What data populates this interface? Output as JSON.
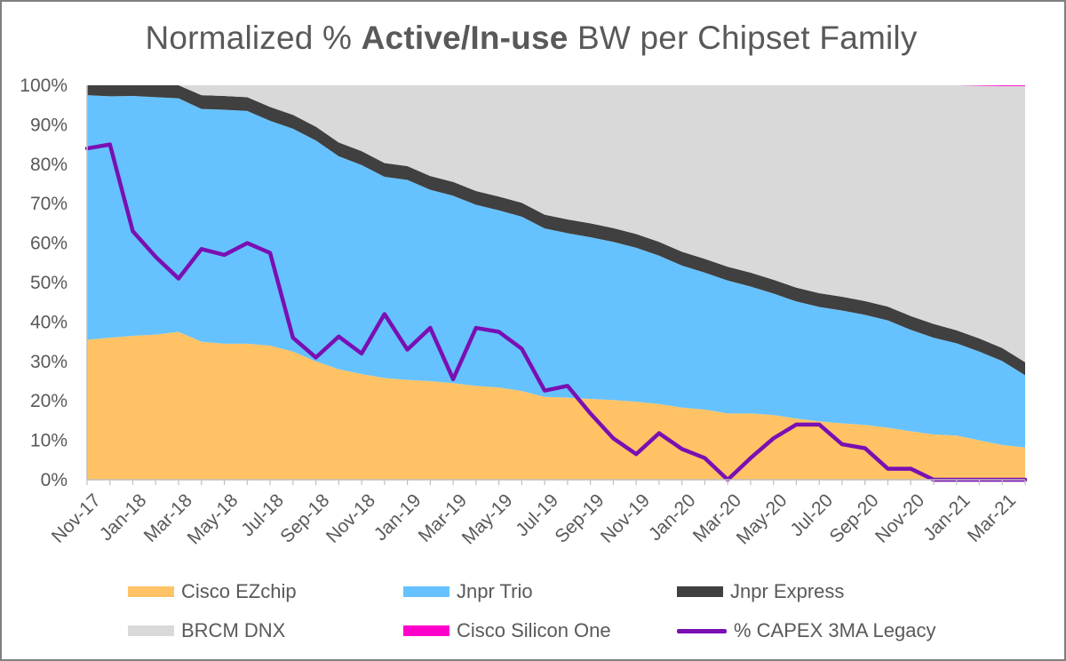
{
  "title": {
    "prefix": "Normalized % ",
    "bold": "Active/In-use",
    "suffix": " BW per Chipset Family"
  },
  "chart_data": {
    "type": "area",
    "stacked": true,
    "title": "Normalized % Active/In-use BW per Chipset Family",
    "xlabel": "",
    "ylabel": "",
    "ylim": [
      0,
      100
    ],
    "y_ticks": [
      "0%",
      "10%",
      "20%",
      "30%",
      "40%",
      "50%",
      "60%",
      "70%",
      "80%",
      "90%",
      "100%"
    ],
    "x_tick_labels": [
      "Nov-17",
      "Jan-18",
      "Mar-18",
      "May-18",
      "Jul-18",
      "Sep-18",
      "Nov-18",
      "Jan-19",
      "Mar-19",
      "May-19",
      "Jul-19",
      "Sep-19",
      "Nov-19",
      "Jan-20",
      "Mar-20",
      "May-20",
      "Jul-20",
      "Sep-20",
      "Nov-20",
      "Jan-21",
      "Mar-21"
    ],
    "categories": [
      "Nov-17",
      "Dec-17",
      "Jan-18",
      "Feb-18",
      "Mar-18",
      "Apr-18",
      "May-18",
      "Jun-18",
      "Jul-18",
      "Aug-18",
      "Sep-18",
      "Oct-18",
      "Nov-18",
      "Dec-18",
      "Jan-19",
      "Feb-19",
      "Mar-19",
      "Apr-19",
      "May-19",
      "Jun-19",
      "Jul-19",
      "Aug-19",
      "Sep-19",
      "Oct-19",
      "Nov-19",
      "Dec-19",
      "Jan-20",
      "Feb-20",
      "Mar-20",
      "Apr-20",
      "May-20",
      "Jun-20",
      "Jul-20",
      "Aug-20",
      "Sep-20",
      "Oct-20",
      "Nov-20",
      "Dec-20",
      "Jan-21",
      "Feb-21",
      "Mar-21",
      "Apr-21"
    ],
    "series": [
      {
        "name": "Cisco EZchip",
        "color": "#ffc366",
        "kind": "area",
        "values": [
          35.5,
          36,
          36.5,
          36.8,
          37.5,
          35,
          34.5,
          34.5,
          34,
          32.5,
          30,
          28,
          26.8,
          25.8,
          25.3,
          25,
          24.5,
          23.8,
          23.4,
          22.5,
          21,
          20.8,
          20.5,
          20.2,
          19.8,
          19.2,
          18.3,
          17.8,
          16.8,
          16.8,
          16.4,
          15.5,
          14.8,
          14.3,
          13.9,
          13.2,
          12.3,
          11.5,
          11.2,
          10,
          8.8,
          8.2
        ]
      },
      {
        "name": "Jnpr Trio",
        "color": "#66c2ff",
        "kind": "area",
        "values": [
          62,
          61.2,
          60.8,
          60.2,
          59.2,
          59,
          59.3,
          59,
          57,
          56.5,
          56,
          54,
          53,
          51,
          50.7,
          48.5,
          47.5,
          45.9,
          44.9,
          44.2,
          42.7,
          41.7,
          41,
          40.1,
          39,
          37.6,
          36,
          34.7,
          33.7,
          32.2,
          30.8,
          29.7,
          29,
          28.6,
          27.9,
          27.2,
          25.7,
          24.5,
          23.4,
          22.5,
          21.3,
          18.3
        ]
      },
      {
        "name": "Jnpr Express",
        "color": "#404040",
        "kind": "area",
        "values": [
          2.5,
          2.8,
          2.7,
          3,
          3.3,
          3.5,
          3.5,
          3.5,
          3.5,
          3.5,
          3.5,
          3.5,
          3.5,
          3.5,
          3.5,
          3.5,
          3.5,
          3.5,
          3.5,
          3.5,
          3.5,
          3.5,
          3.5,
          3.5,
          3.5,
          3.5,
          3.5,
          3.5,
          3.5,
          3.5,
          3.5,
          3.5,
          3.5,
          3.5,
          3.5,
          3.5,
          3.5,
          3.5,
          3.3,
          3.3,
          3.3,
          3.3
        ]
      },
      {
        "name": "BRCM DNX",
        "color": "#d9d9d9",
        "kind": "area",
        "values": [
          0,
          0,
          0,
          0,
          0,
          2.5,
          2.7,
          3,
          5.5,
          7.5,
          10.5,
          14.5,
          16.7,
          19.7,
          20.5,
          23,
          24.5,
          26.8,
          28.2,
          29.8,
          32.8,
          34,
          35,
          36.2,
          37.7,
          39.7,
          42.2,
          44,
          46,
          47.5,
          49.3,
          51.3,
          52.7,
          53.6,
          54.7,
          56.1,
          58.5,
          60.5,
          62.1,
          64.1,
          66.4,
          70
        ]
      },
      {
        "name": "Cisco Silicon One",
        "color": "#ff00cc",
        "kind": "area",
        "values": [
          0,
          0,
          0,
          0,
          0,
          0,
          0,
          0,
          0,
          0,
          0,
          0,
          0,
          0,
          0,
          0,
          0,
          0,
          0,
          0,
          0,
          0,
          0,
          0,
          0,
          0,
          0,
          0,
          0,
          0,
          0,
          0,
          0,
          0,
          0,
          0,
          0,
          0,
          0,
          0.1,
          0.2,
          0.2
        ]
      },
      {
        "name": "% CAPEX 3MA Legacy",
        "color": "#7a0fb3",
        "kind": "line",
        "values": [
          84,
          85,
          63,
          56.5,
          51,
          58.5,
          57,
          60,
          57.5,
          36,
          31,
          36.3,
          32,
          42,
          33,
          38.5,
          25.5,
          38.5,
          37.5,
          33.2,
          22.6,
          23.8,
          16.8,
          10.5,
          6.5,
          11.8,
          7.8,
          5.5,
          0,
          5.5,
          10.5,
          14,
          14,
          9,
          8,
          2.8,
          2.8,
          0,
          0,
          0,
          0,
          0
        ]
      }
    ],
    "legend": {
      "position": "bottom",
      "columns": 3
    },
    "grid": false
  },
  "legend_items": [
    {
      "label": "Cisco EZchip",
      "color": "#ffc366",
      "kind": "area"
    },
    {
      "label": "Jnpr Trio",
      "color": "#66c2ff",
      "kind": "area"
    },
    {
      "label": "Jnpr Express",
      "color": "#404040",
      "kind": "area"
    },
    {
      "label": "BRCM DNX",
      "color": "#d9d9d9",
      "kind": "area"
    },
    {
      "label": "Cisco Silicon One",
      "color": "#ff00cc",
      "kind": "area"
    },
    {
      "label": "% CAPEX 3MA Legacy",
      "color": "#7a0fb3",
      "kind": "line"
    }
  ]
}
